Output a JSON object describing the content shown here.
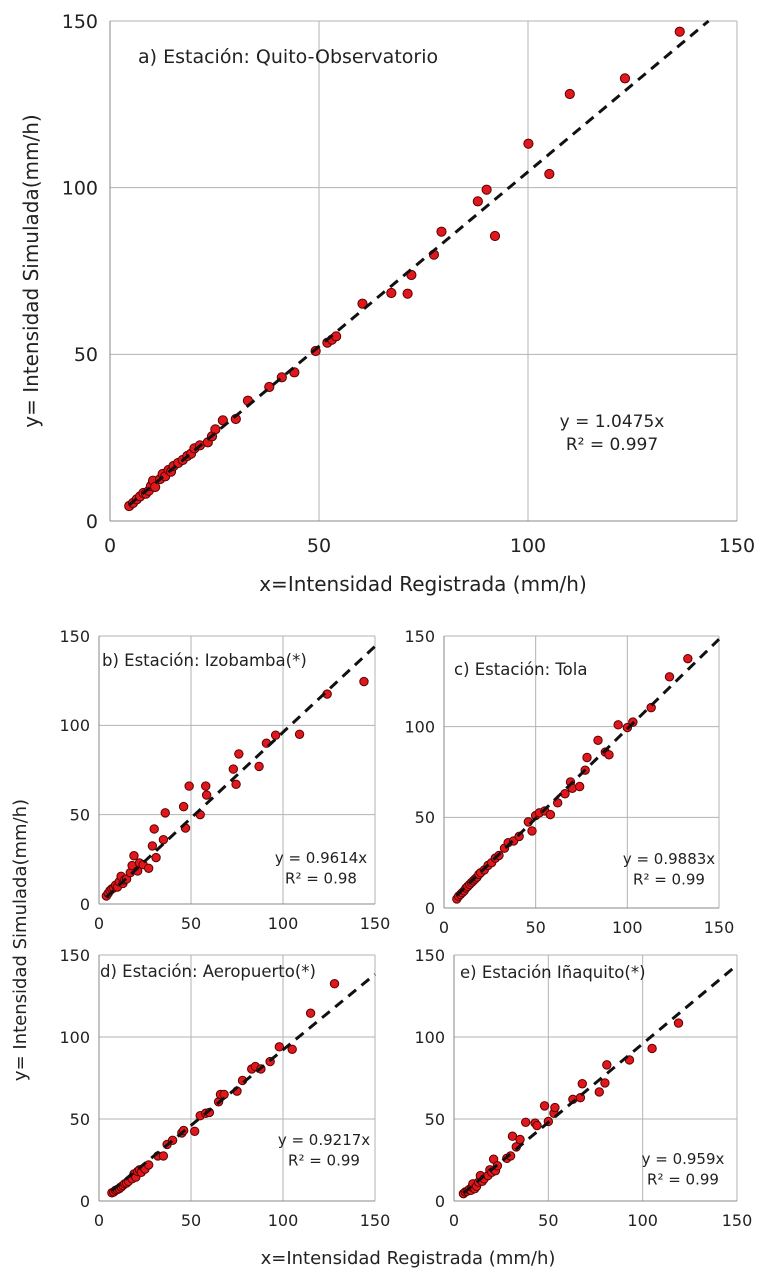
{
  "figure": {
    "top_xlabel": "x=Intensidad Registrada (mm/h)",
    "top_ylabel": "y= Intensidad Simulada(mm/h)",
    "bottom_xlabel": "x=Intensidad Registrada (mm/h)",
    "bottom_ylabel": "y= Intensidad Simulada(mm/h)"
  },
  "colors": {
    "marker_fill": "#e0181d",
    "marker_edge": "#5a0000",
    "trendline": "#111111",
    "grid": "#b3b3b3"
  },
  "chart_data": [
    {
      "type": "scatter",
      "title": "a) Estación: Quito-Observatorio",
      "equation": "y = 1.0475x",
      "r2": "R² = 0.997",
      "slope": 1.0475,
      "xlim": [
        0,
        150
      ],
      "ylim": [
        0,
        150
      ],
      "xticks": [
        0,
        50,
        100,
        150
      ],
      "yticks": [
        0,
        50,
        100,
        150
      ],
      "grid": true,
      "points": [
        [
          4.6,
          4.5
        ],
        [
          5.5,
          5.4
        ],
        [
          6.4,
          6.5
        ],
        [
          7.2,
          7.4
        ],
        [
          8.0,
          8.4
        ],
        [
          8.6,
          8.2
        ],
        [
          9.3,
          9.1
        ],
        [
          9.8,
          10.5
        ],
        [
          10.3,
          12.1
        ],
        [
          10.8,
          10.2
        ],
        [
          12.0,
          12.6
        ],
        [
          12.6,
          14.1
        ],
        [
          13.2,
          13.4
        ],
        [
          14.0,
          15.3
        ],
        [
          14.6,
          14.8
        ],
        [
          15.2,
          16.5
        ],
        [
          16.3,
          17.4
        ],
        [
          17.4,
          18.3
        ],
        [
          18.5,
          19.5
        ],
        [
          19.4,
          20.2
        ],
        [
          20.2,
          21.8
        ],
        [
          21.5,
          22.7
        ],
        [
          23.4,
          23.6
        ],
        [
          24.4,
          25.4
        ],
        [
          25.2,
          27.5
        ],
        [
          27.0,
          30.2
        ],
        [
          30.1,
          30.6
        ],
        [
          33.0,
          36.1
        ],
        [
          38.1,
          40.2
        ],
        [
          41.1,
          43.1
        ],
        [
          44.1,
          44.6
        ],
        [
          49.2,
          51.0
        ],
        [
          52.0,
          53.5
        ],
        [
          53.1,
          54.4
        ],
        [
          54.1,
          55.4
        ],
        [
          60.4,
          65.2
        ],
        [
          67.3,
          68.4
        ],
        [
          71.2,
          68.2
        ],
        [
          72.1,
          73.8
        ],
        [
          77.5,
          79.9
        ],
        [
          79.3,
          86.8
        ],
        [
          88.0,
          95.9
        ],
        [
          90.1,
          99.4
        ],
        [
          92.1,
          85.5
        ],
        [
          100.1,
          113.2
        ],
        [
          105.1,
          104.1
        ],
        [
          110.0,
          128.1
        ],
        [
          123.2,
          132.8
        ],
        [
          136.3,
          146.8
        ]
      ]
    },
    {
      "type": "scatter",
      "title": "b) Estación: Izobamba(*)",
      "equation": "y = 0.9614x",
      "r2": "R² = 0.98",
      "slope": 0.9614,
      "xlim": [
        0,
        150
      ],
      "ylim": [
        0,
        150
      ],
      "xticks": [
        0,
        50,
        100,
        150
      ],
      "yticks": [
        0,
        50,
        100,
        150
      ],
      "grid": true,
      "points": [
        [
          4.0,
          4.5
        ],
        [
          5.0,
          6.0
        ],
        [
          6.0,
          7.5
        ],
        [
          7.0,
          8.5
        ],
        [
          8.0,
          9.0
        ],
        [
          9.0,
          10.5
        ],
        [
          10.0,
          9.5
        ],
        [
          11.0,
          12.5
        ],
        [
          12.0,
          15.5
        ],
        [
          13.0,
          11.5
        ],
        [
          14.0,
          13.5
        ],
        [
          15.0,
          14.0
        ],
        [
          17.0,
          17.5
        ],
        [
          18.0,
          21.5
        ],
        [
          19.0,
          27.0
        ],
        [
          21.0,
          18.5
        ],
        [
          22.0,
          23.0
        ],
        [
          24.0,
          22.0
        ],
        [
          27.0,
          20.0
        ],
        [
          29.0,
          32.5
        ],
        [
          30.0,
          42.0
        ],
        [
          31.0,
          26.0
        ],
        [
          35.0,
          36.0
        ],
        [
          36.0,
          51.0
        ],
        [
          46.0,
          54.5
        ],
        [
          47.0,
          42.5
        ],
        [
          49.0,
          66.0
        ],
        [
          55.0,
          50.0
        ],
        [
          58.0,
          66.0
        ],
        [
          58.5,
          61.0
        ],
        [
          73.0,
          75.5
        ],
        [
          74.5,
          67.0
        ],
        [
          76.0,
          84.0
        ],
        [
          87.0,
          77.0
        ],
        [
          91.0,
          90.0
        ],
        [
          96.0,
          94.5
        ],
        [
          109.0,
          95.0
        ],
        [
          124.0,
          117.5
        ],
        [
          144.0,
          124.5
        ]
      ]
    },
    {
      "type": "scatter",
      "title": "c) Estación: Tola",
      "equation": "y = 0.9883x",
      "r2": "R² = 0.99",
      "slope": 0.9883,
      "xlim": [
        0,
        150
      ],
      "ylim": [
        0,
        150
      ],
      "xticks": [
        0,
        50,
        100,
        150
      ],
      "yticks": [
        0,
        50,
        100,
        150
      ],
      "grid": true,
      "points": [
        [
          7.0,
          5.0
        ],
        [
          8.0,
          6.5
        ],
        [
          9.0,
          7.5
        ],
        [
          10.0,
          8.5
        ],
        [
          11.0,
          9.5
        ],
        [
          12.0,
          11.0
        ],
        [
          13.0,
          12.0
        ],
        [
          14.0,
          13.0
        ],
        [
          15.0,
          14.0
        ],
        [
          16.0,
          15.0
        ],
        [
          17.0,
          16.0
        ],
        [
          18.0,
          17.0
        ],
        [
          19.0,
          18.5
        ],
        [
          20.0,
          19.5
        ],
        [
          22.0,
          21.0
        ],
        [
          24.0,
          23.5
        ],
        [
          26.0,
          25.0
        ],
        [
          28.0,
          27.5
        ],
        [
          30.0,
          29.0
        ],
        [
          33.0,
          33.0
        ],
        [
          35.0,
          36.0
        ],
        [
          38.0,
          37.0
        ],
        [
          41.0,
          39.5
        ],
        [
          46.0,
          47.5
        ],
        [
          48.0,
          42.5
        ],
        [
          50.0,
          51.0
        ],
        [
          52.0,
          52.5
        ],
        [
          55.0,
          53.5
        ],
        [
          58.0,
          51.5
        ],
        [
          62.0,
          58.0
        ],
        [
          66.0,
          63.0
        ],
        [
          69.0,
          69.5
        ],
        [
          70.0,
          66.0
        ],
        [
          74.0,
          67.0
        ],
        [
          77.0,
          76.0
        ],
        [
          78.0,
          83.0
        ],
        [
          84.0,
          92.5
        ],
        [
          88.0,
          86.0
        ],
        [
          90.0,
          84.5
        ],
        [
          95.0,
          101.0
        ],
        [
          100.0,
          99.5
        ],
        [
          103.0,
          102.5
        ],
        [
          113.0,
          110.5
        ],
        [
          123.0,
          127.5
        ],
        [
          133.0,
          137.5
        ]
      ]
    },
    {
      "type": "scatter",
      "title": "d) Estación: Aeropuerto(*)",
      "equation": "y = 0.9217x",
      "r2": "R² = 0.99",
      "slope": 0.9217,
      "xlim": [
        0,
        150
      ],
      "ylim": [
        0,
        150
      ],
      "xticks": [
        0,
        50,
        100,
        150
      ],
      "yticks": [
        0,
        50,
        100,
        150
      ],
      "grid": true,
      "points": [
        [
          7.0,
          5.0
        ],
        [
          8.0,
          5.5
        ],
        [
          9.0,
          6.5
        ],
        [
          10.0,
          7.0
        ],
        [
          11.0,
          7.5
        ],
        [
          12.0,
          8.5
        ],
        [
          13.0,
          9.5
        ],
        [
          14.0,
          10.5
        ],
        [
          15.0,
          11.0
        ],
        [
          16.0,
          12.0
        ],
        [
          18.0,
          13.5
        ],
        [
          19.0,
          16.5
        ],
        [
          20.0,
          14.5
        ],
        [
          21.0,
          18.0
        ],
        [
          22.0,
          19.0
        ],
        [
          23.0,
          17.5
        ],
        [
          25.0,
          19.5
        ],
        [
          27.0,
          22.0
        ],
        [
          32.0,
          27.5
        ],
        [
          35.0,
          27.5
        ],
        [
          37.0,
          34.5
        ],
        [
          40.0,
          37.0
        ],
        [
          45.0,
          41.5
        ],
        [
          46.0,
          43.0
        ],
        [
          52.0,
          42.5
        ],
        [
          55.0,
          52.0
        ],
        [
          58.0,
          53.5
        ],
        [
          60.0,
          54.0
        ],
        [
          65.0,
          60.5
        ],
        [
          66.0,
          65.0
        ],
        [
          68.0,
          65.0
        ],
        [
          75.0,
          67.0
        ],
        [
          78.0,
          73.5
        ],
        [
          83.0,
          80.5
        ],
        [
          85.0,
          82.0
        ],
        [
          88.0,
          80.5
        ],
        [
          93.0,
          85.0
        ],
        [
          98.0,
          94.0
        ],
        [
          105.0,
          92.5
        ],
        [
          115.0,
          114.5
        ],
        [
          128.0,
          132.5
        ]
      ]
    },
    {
      "type": "scatter",
      "title": "e) Estación Iñaquito(*)",
      "equation": "y = 0.959x",
      "r2": "R² = 0.99",
      "slope": 0.959,
      "xlim": [
        0,
        150
      ],
      "ylim": [
        0,
        150
      ],
      "xticks": [
        0,
        50,
        100,
        150
      ],
      "yticks": [
        0,
        50,
        100,
        150
      ],
      "grid": true,
      "points": [
        [
          5.0,
          4.5
        ],
        [
          6.0,
          5.5
        ],
        [
          7.0,
          6.0
        ],
        [
          8.0,
          7.0
        ],
        [
          9.0,
          6.5
        ],
        [
          9.5,
          8.5
        ],
        [
          10.0,
          10.5
        ],
        [
          11.0,
          7.5
        ],
        [
          12.0,
          9.0
        ],
        [
          13.0,
          11.5
        ],
        [
          14.0,
          15.5
        ],
        [
          15.0,
          12.0
        ],
        [
          16.0,
          13.5
        ],
        [
          18.0,
          15.5
        ],
        [
          19.0,
          19.0
        ],
        [
          20.0,
          17.5
        ],
        [
          21.0,
          25.5
        ],
        [
          22.0,
          18.5
        ],
        [
          23.0,
          21.5
        ],
        [
          28.0,
          26.0
        ],
        [
          30.0,
          27.5
        ],
        [
          31.0,
          39.5
        ],
        [
          33.0,
          33.0
        ],
        [
          35.0,
          37.5
        ],
        [
          38.0,
          48.0
        ],
        [
          43.0,
          47.5
        ],
        [
          44.0,
          46.0
        ],
        [
          48.0,
          58.0
        ],
        [
          50.0,
          48.5
        ],
        [
          53.0,
          53.5
        ],
        [
          53.5,
          57.0
        ],
        [
          63.0,
          62.0
        ],
        [
          67.0,
          63.0
        ],
        [
          68.0,
          71.5
        ],
        [
          77.0,
          66.5
        ],
        [
          80.0,
          72.0
        ],
        [
          81.0,
          83.0
        ],
        [
          93.0,
          86.0
        ],
        [
          105.0,
          93.0
        ],
        [
          119.0,
          108.5
        ]
      ]
    }
  ]
}
